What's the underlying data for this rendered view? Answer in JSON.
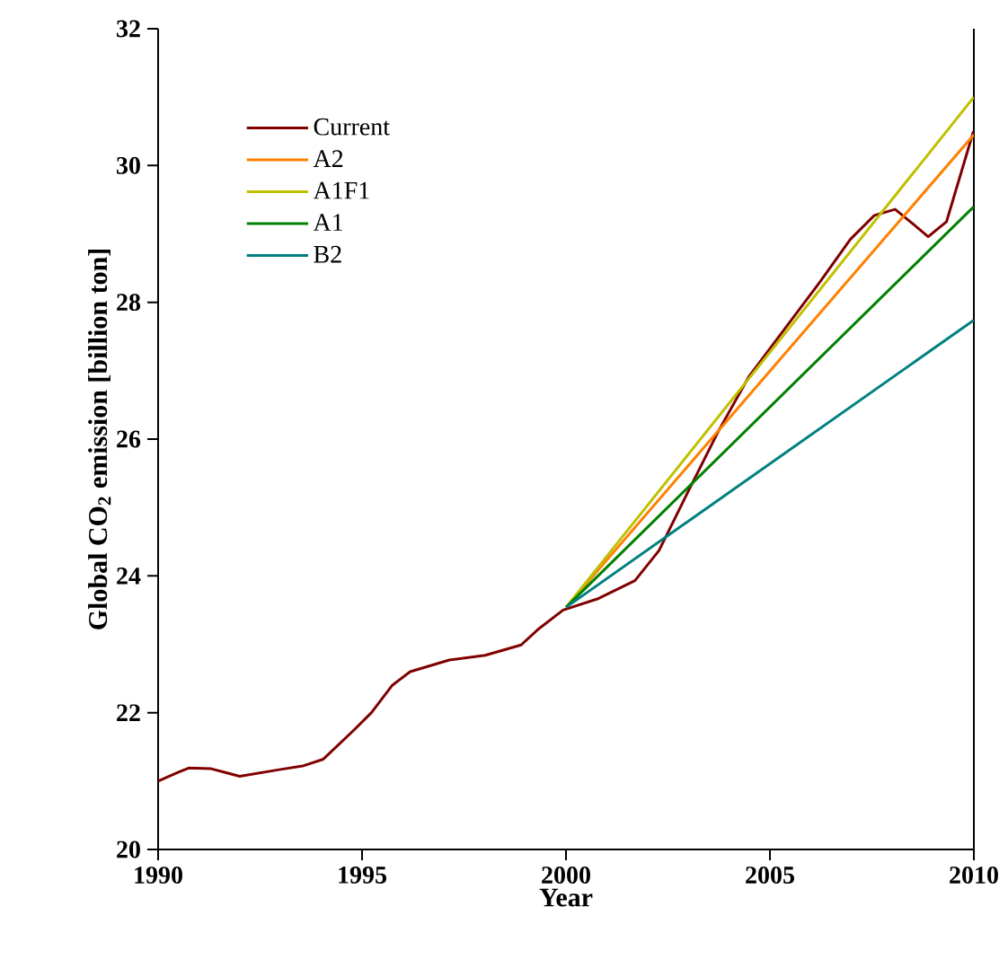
{
  "chart_data": {
    "type": "line",
    "xlabel": "Year",
    "ylabel": "Global CO$_{2}$ emission [billion ton]",
    "xlim": [
      1990,
      2010
    ],
    "ylim": [
      20,
      32
    ],
    "xticks": [
      1990,
      1995,
      2000,
      2005,
      2010
    ],
    "yticks": [
      20,
      22,
      24,
      26,
      28,
      30,
      32
    ],
    "legend": "top left",
    "grid": false,
    "marker": "none",
    "line_style": "solid",
    "series": [
      {
        "name": "Current",
        "color": "#800000",
        "x": [
          1990,
          1990.5,
          1990.75,
          1991.3,
          1992.0,
          1993.0,
          1993.54,
          1994.05,
          1994.79,
          1995.23,
          1995.74,
          1996.18,
          1997.14,
          1998.02,
          1998.9,
          1999.34,
          1999.93,
          2000.8,
          2001.69,
          2002.28,
          2003.0,
          2003.74,
          2004.48,
          2005.36,
          2006.24,
          2006.97,
          2007.56,
          2008.07,
          2008.44,
          2008.88,
          2009.33,
          2009.99
        ],
        "values": [
          21.0,
          21.13,
          21.19,
          21.18,
          21.07,
          21.17,
          21.22,
          21.32,
          21.74,
          22.0,
          22.4,
          22.6,
          22.77,
          22.84,
          22.99,
          23.23,
          23.5,
          23.67,
          23.93,
          24.37,
          25.24,
          26.12,
          26.91,
          27.61,
          28.31,
          28.92,
          29.27,
          29.36,
          29.18,
          28.96,
          29.18,
          30.5
        ]
      },
      {
        "name": "A2",
        "color": "#ff8000",
        "x": [
          2000,
          2010
        ],
        "values": [
          23.54,
          30.45
        ]
      },
      {
        "name": "A1F1",
        "color": "#c0c000",
        "x": [
          2000,
          2010
        ],
        "values": [
          23.54,
          31.0
        ]
      },
      {
        "name": "A1",
        "color": "#008000",
        "x": [
          2000,
          2010
        ],
        "values": [
          23.54,
          29.4
        ]
      },
      {
        "name": "B2",
        "color": "#008080",
        "x": [
          2000,
          2010
        ],
        "values": [
          23.54,
          27.74
        ]
      }
    ]
  }
}
